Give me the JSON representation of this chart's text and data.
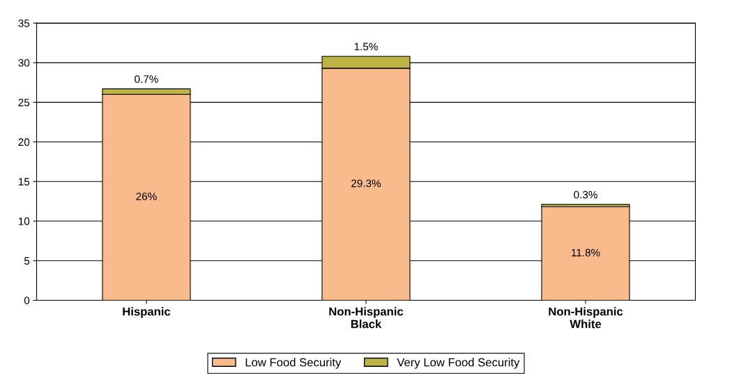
{
  "chart_data": {
    "type": "bar",
    "stacked": true,
    "categories": [
      "Hispanic",
      "Non-Hispanic\nBlack",
      "Non-Hispanic\nWhite"
    ],
    "series": [
      {
        "name": "Low Food Security",
        "color": "#f9bb8b",
        "values": [
          26,
          29.3,
          11.8
        ],
        "value_labels": [
          "26%",
          "29.3%",
          "11.8%"
        ]
      },
      {
        "name": "Very Low Food Security",
        "color": "#bcb445",
        "values": [
          0.7,
          1.5,
          0.3
        ],
        "value_labels": [
          "0.7%",
          "1.5%",
          "0.3%"
        ]
      }
    ],
    "ylim": [
      0,
      35
    ],
    "yticks": [
      0,
      5,
      10,
      15,
      20,
      25,
      30,
      35
    ],
    "grid": "y",
    "legend": "bottom"
  }
}
